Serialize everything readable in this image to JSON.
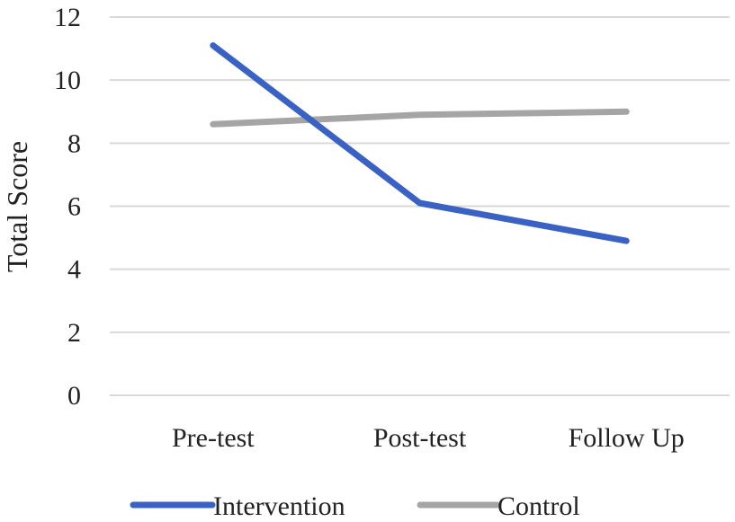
{
  "chart_data": {
    "type": "line",
    "categories": [
      "Pre-test",
      "Post-test",
      "Follow Up"
    ],
    "series": [
      {
        "name": "Intervention",
        "values": [
          11.1,
          6.1,
          4.9
        ],
        "color": "#3a62c4"
      },
      {
        "name": "Control",
        "values": [
          8.6,
          8.9,
          9.0
        ],
        "color": "#a5a5a5"
      }
    ],
    "ylabel": "Total Score",
    "xlabel": "",
    "ylim": [
      0,
      12
    ],
    "yticks": [
      0,
      2,
      4,
      6,
      8,
      10,
      12
    ],
    "grid": true,
    "gridline_color": "#d9d9d9",
    "legend_position": "bottom"
  }
}
